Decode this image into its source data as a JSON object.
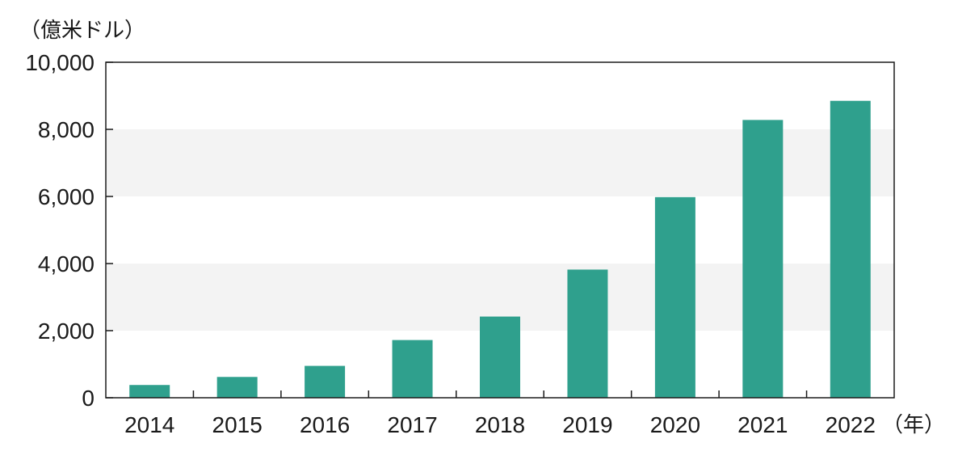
{
  "chart_data": {
    "type": "bar",
    "categories": [
      "2014",
      "2015",
      "2016",
      "2017",
      "2018",
      "2019",
      "2020",
      "2021",
      "2022"
    ],
    "values": [
      380,
      620,
      950,
      1720,
      2420,
      3820,
      5980,
      8280,
      8850
    ],
    "ylim": [
      0,
      10000
    ],
    "yticks": [
      0,
      2000,
      4000,
      6000,
      8000,
      10000
    ],
    "ytick_labels": [
      "0",
      "2,000",
      "4,000",
      "6,000",
      "8,000",
      "10,000"
    ],
    "y_unit_label": "（億米ドル）",
    "x_unit_label": "（年）",
    "grid": "alternating bands",
    "legend": "none"
  },
  "colors": {
    "bar": "#2fa08d",
    "band": "#f3f3f3",
    "axis": "#1a1a1a"
  }
}
